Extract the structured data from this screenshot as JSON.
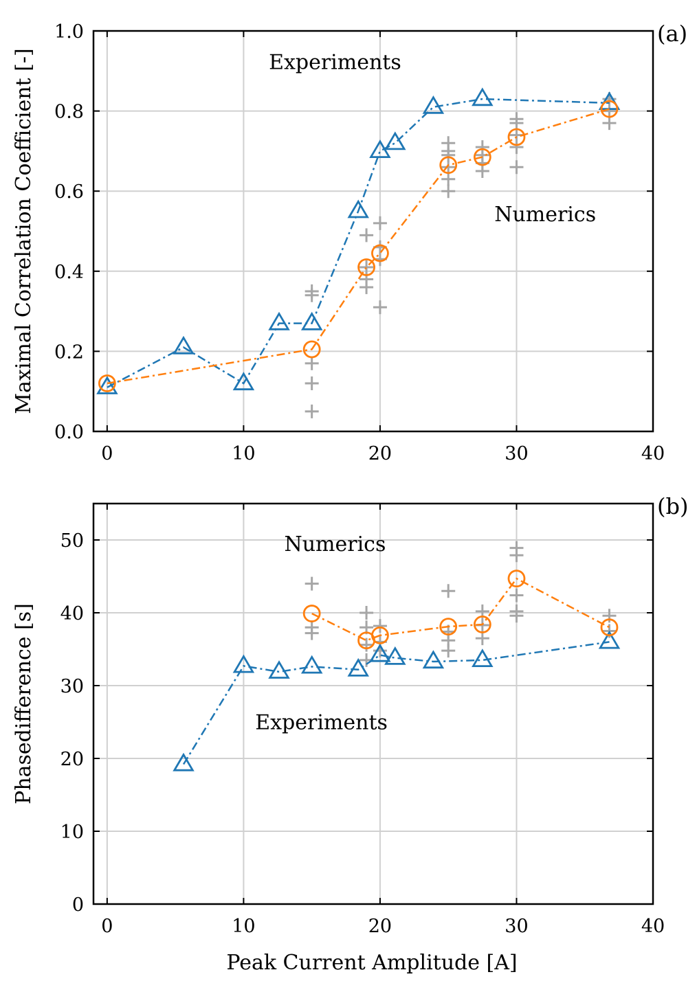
{
  "colors": {
    "experiments": "#1f77b4",
    "numerics": "#ff7f0e",
    "samples": "#a6a6a6",
    "grid": "#d0d0d0",
    "axis": "#000000"
  },
  "chart_data": [
    {
      "type": "line",
      "panel_label": "(a)",
      "title": "",
      "xlabel": "",
      "ylabel": "Maximal Correlation Coefficient [-]",
      "xlim": [
        -1,
        40
      ],
      "ylim": [
        0,
        1
      ],
      "xticks": [
        "0",
        "10",
        "20",
        "30",
        "40"
      ],
      "xtick_values": [
        0,
        10,
        20,
        30,
        40
      ],
      "yticks": [
        "0.0",
        "0.2",
        "0.4",
        "0.6",
        "0.8",
        "1.0"
      ],
      "ytick_values": [
        0.0,
        0.2,
        0.4,
        0.6,
        0.8,
        1.0
      ],
      "grid": true,
      "annotations": [
        {
          "text": "Experiments",
          "x": 16.7,
          "y": 0.905
        },
        {
          "text": "Numerics",
          "x": 32.1,
          "y": 0.525
        }
      ],
      "series": [
        {
          "key": "experiments",
          "marker": "triangle",
          "linestyle": "dashdot",
          "x": [
            0,
            5.6,
            10,
            12.6,
            15,
            18.4,
            20,
            21.1,
            23.9,
            27.5,
            36.8
          ],
          "y": [
            0.11,
            0.21,
            0.12,
            0.27,
            0.27,
            0.55,
            0.7,
            0.72,
            0.81,
            0.83,
            0.82
          ]
        },
        {
          "key": "numerics",
          "marker": "circle",
          "linestyle": "dashdot",
          "x": [
            0,
            15,
            19,
            20,
            25,
            27.5,
            30,
            36.8
          ],
          "y": [
            0.12,
            0.205,
            0.41,
            0.445,
            0.665,
            0.685,
            0.735,
            0.805
          ]
        },
        {
          "key": "samples",
          "marker": "plus",
          "linestyle": "none",
          "x": [
            15,
            15,
            15,
            15,
            15,
            19,
            19,
            19,
            19,
            20,
            20,
            20,
            20,
            25,
            25,
            25,
            25,
            25,
            25,
            27.5,
            27.5,
            27.5,
            27.5,
            30,
            30,
            30,
            30,
            30,
            36.8,
            36.8,
            36.8
          ],
          "y": [
            0.05,
            0.12,
            0.17,
            0.34,
            0.35,
            0.36,
            0.38,
            0.41,
            0.49,
            0.31,
            0.43,
            0.46,
            0.52,
            0.6,
            0.63,
            0.66,
            0.69,
            0.7,
            0.72,
            0.65,
            0.67,
            0.69,
            0.71,
            0.66,
            0.71,
            0.74,
            0.77,
            0.78,
            0.77,
            0.8,
            0.83
          ]
        }
      ]
    },
    {
      "type": "line",
      "panel_label": "(b)",
      "title": "",
      "xlabel": "Peak Current Amplitude [A]",
      "ylabel": "Phasedifference [s]",
      "xlim": [
        -1,
        40
      ],
      "ylim": [
        0,
        55
      ],
      "xticks": [
        "0",
        "10",
        "20",
        "30",
        "40"
      ],
      "xtick_values": [
        0,
        10,
        20,
        30,
        40
      ],
      "yticks": [
        "0",
        "10",
        "20",
        "30",
        "40",
        "50"
      ],
      "ytick_values": [
        0,
        10,
        20,
        30,
        40,
        50
      ],
      "grid": true,
      "annotations": [
        {
          "text": "Numerics",
          "x": 16.7,
          "y": 48.5
        },
        {
          "text": "Experiments",
          "x": 15.7,
          "y": 24.0
        }
      ],
      "series": [
        {
          "key": "experiments",
          "marker": "triangle",
          "linestyle": "dashdot",
          "x": [
            5.6,
            10,
            12.6,
            15,
            18.4,
            20,
            21.1,
            23.9,
            27.5,
            36.8
          ],
          "y": [
            19.2,
            32.7,
            31.9,
            32.6,
            32.2,
            34.2,
            33.8,
            33.3,
            33.5,
            36.0
          ]
        },
        {
          "key": "numerics",
          "marker": "circle",
          "linestyle": "dashdot",
          "x": [
            15,
            19,
            20,
            25,
            27.5,
            30,
            36.8
          ],
          "y": [
            39.9,
            36.2,
            36.9,
            38.1,
            38.4,
            44.7,
            38.0
          ]
        },
        {
          "key": "samples",
          "marker": "plus",
          "linestyle": "none",
          "x": [
            15,
            15,
            15,
            19,
            19,
            19,
            19,
            20,
            20,
            20,
            25,
            25,
            25,
            25,
            27.5,
            27.5,
            27.5,
            30,
            30,
            30,
            30,
            30,
            36.8,
            36.8
          ],
          "y": [
            44.0,
            38.0,
            37.2,
            40.0,
            38.0,
            35.6,
            33.5,
            38.2,
            36.0,
            34.8,
            43.0,
            37.4,
            36.2,
            34.8,
            40.2,
            38.3,
            36.5,
            48.9,
            47.9,
            42.4,
            40.2,
            39.6,
            39.6,
            37.5
          ]
        }
      ]
    }
  ]
}
